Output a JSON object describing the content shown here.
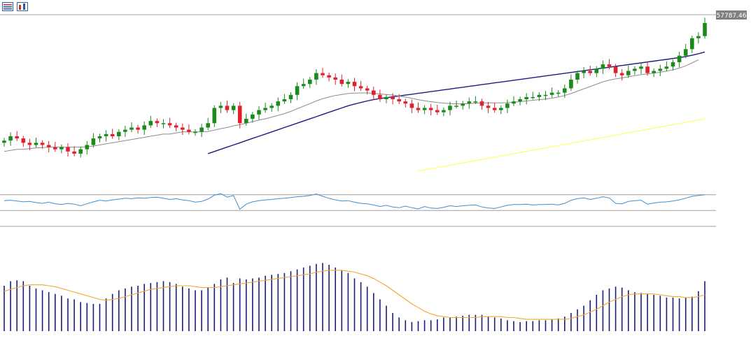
{
  "toolbar": {
    "icons": [
      "candles-view-icon",
      "chart-type-icon"
    ]
  },
  "colors": {
    "up": "#1a8a1a",
    "down": "#e0202f",
    "ma_short": "#8c8c8c",
    "ma_mid": "#1c1c80",
    "ma_long": "#ffff66",
    "rsi": "#3d8fd6",
    "macd_bar": "#1c1c7a",
    "macd_signal": "#f0a830",
    "level_line": "#a0a0a0",
    "label_bg": "#808080",
    "label_text": "#ffffff"
  },
  "price_label": "57787.46",
  "chart_data": [
    {
      "type": "candlestick",
      "panel": "price",
      "current_price": 57787.46,
      "closes": [
        100,
        102,
        101,
        99,
        98,
        99,
        98,
        97,
        96,
        97,
        95,
        94,
        96,
        98,
        101,
        102,
        103,
        102,
        104,
        105,
        106,
        105,
        107,
        109,
        108,
        108,
        107,
        106,
        105,
        104,
        104,
        106,
        108,
        115,
        116,
        114,
        116,
        108,
        110,
        112,
        114,
        115,
        116,
        118,
        119,
        121,
        125,
        126,
        128,
        131,
        130,
        129,
        128,
        126,
        127,
        125,
        124,
        123,
        121,
        119,
        120,
        119,
        118,
        117,
        115,
        114,
        115,
        114,
        113,
        114,
        116,
        116,
        117,
        118,
        118,
        116,
        115,
        114,
        115,
        117,
        118,
        119,
        120,
        120,
        121,
        121,
        122,
        122,
        124,
        128,
        131,
        132,
        131,
        133,
        135,
        134,
        131,
        130,
        132,
        133,
        134,
        131,
        132,
        133,
        134,
        136,
        139,
        142,
        147,
        148,
        154
      ],
      "ma_short": [
        95,
        95.5,
        96,
        96,
        96.3,
        96.6,
        96.8,
        97,
        97,
        97,
        97,
        97,
        97,
        97.2,
        97.5,
        98,
        98.5,
        99,
        99.5,
        100,
        100.5,
        101,
        101.5,
        102,
        102.5,
        103,
        103,
        103.5,
        104,
        104,
        104,
        104,
        104.2,
        104.8,
        105.5,
        106,
        106.8,
        107.3,
        108,
        108.7,
        109.4,
        110,
        110.8,
        111.6,
        112.4,
        113.4,
        114.6,
        115.8,
        117,
        118.2,
        119.2,
        120,
        120.7,
        121.2,
        121.6,
        121.8,
        121.9,
        121.9,
        121.7,
        121.4,
        121.2,
        120.9,
        120.5,
        120,
        119.4,
        118.8,
        118.3,
        117.9,
        117.5,
        117.2,
        117,
        116.9,
        116.9,
        117,
        117.2,
        117.3,
        117.3,
        117.3,
        117.3,
        117.4,
        117.6,
        117.9,
        118.2,
        118.5,
        118.8,
        119.1,
        119.5,
        120,
        120.7,
        121.6,
        122.7,
        123.8,
        124.8,
        125.9,
        127,
        127.8,
        128.3,
        128.8,
        129.3,
        129.8,
        130.3,
        130.6,
        131,
        131.4,
        131.9,
        132.5,
        133.3,
        134.3,
        135.7,
        137.1
      ],
      "ma_mid": [
        null,
        null,
        null,
        null,
        null,
        null,
        null,
        null,
        null,
        null,
        null,
        null,
        null,
        null,
        null,
        null,
        null,
        null,
        null,
        null,
        null,
        null,
        null,
        null,
        null,
        null,
        null,
        null,
        null,
        null,
        null,
        null,
        94,
        95,
        96,
        97,
        98,
        99,
        100,
        101,
        102,
        103,
        104,
        105,
        106,
        107,
        108,
        109,
        110,
        111,
        112,
        113,
        114,
        115,
        116,
        116.8,
        117.5,
        118.2,
        118.8,
        119.3,
        119.7,
        120.1,
        120.5,
        120.9,
        121.3,
        121.7,
        122.1,
        122.5,
        122.9,
        123.3,
        123.7,
        124.1,
        124.5,
        124.9,
        125.3,
        125.7,
        126.1,
        126.5,
        126.9,
        127.3,
        127.7,
        128.1,
        128.5,
        128.9,
        129.3,
        129.7,
        130.1,
        130.5,
        130.9,
        131.3,
        131.7,
        132.1,
        132.5,
        132.9,
        133.3,
        133.7,
        134.1,
        134.5,
        134.9,
        135.3,
        135.7,
        136.1,
        136.5,
        136.9,
        137.3,
        137.7,
        138.1,
        138.6,
        139.2,
        139.9,
        140.7
      ],
      "ma_long_range": [
        86,
        110
      ],
      "ylim": [
        85,
        162
      ]
    },
    {
      "type": "line",
      "panel": "rsi",
      "levels": [
        70,
        30
      ],
      "values": [
        55,
        56,
        54,
        52,
        53,
        50,
        48,
        51,
        47,
        45,
        48,
        46,
        42,
        47,
        52,
        56,
        54,
        57,
        59,
        61,
        60,
        62,
        61,
        63,
        64,
        61,
        58,
        60,
        57,
        55,
        51,
        53,
        59,
        69,
        73,
        64,
        68,
        33,
        46,
        52,
        55,
        57,
        58,
        60,
        61,
        63,
        65,
        66,
        68,
        72,
        66,
        61,
        57,
        54,
        55,
        51,
        48,
        47,
        44,
        40,
        43,
        39,
        37,
        41,
        37,
        34,
        40,
        36,
        35,
        38,
        42,
        40,
        42,
        43,
        44,
        39,
        36,
        35,
        39,
        43,
        45,
        45,
        46,
        44,
        45,
        45,
        46,
        44,
        48,
        56,
        60,
        62,
        58,
        61,
        65,
        62,
        48,
        47,
        53,
        55,
        56,
        46,
        49,
        51,
        52,
        54,
        57,
        61,
        66,
        68,
        70
      ],
      "ylim": [
        0,
        100
      ]
    },
    {
      "type": "bar",
      "panel": "macd",
      "values": [
        50,
        55,
        56,
        55,
        50,
        47,
        45,
        43,
        41,
        39,
        36,
        35,
        32,
        31,
        30,
        30,
        36,
        41,
        45,
        47,
        49,
        50,
        52,
        53,
        54,
        55,
        54,
        52,
        49,
        47,
        45,
        45,
        48,
        52,
        57,
        59,
        53,
        58,
        57,
        58,
        59,
        61,
        62,
        63,
        64,
        66,
        68,
        70,
        72,
        74,
        75,
        73,
        70,
        67,
        64,
        58,
        54,
        49,
        42,
        35,
        28,
        20,
        15,
        12,
        10,
        11,
        12,
        12,
        13,
        15,
        15,
        16,
        17,
        18,
        18,
        18,
        16,
        15,
        14,
        12,
        11,
        10,
        11,
        11,
        12,
        12,
        13,
        14,
        16,
        20,
        24,
        28,
        34,
        40,
        45,
        47,
        49,
        48,
        45,
        43,
        42,
        41,
        40,
        39,
        37,
        37,
        36,
        37,
        38,
        44,
        55
      ],
      "signal": [
        44,
        46,
        48,
        50,
        51,
        51,
        51,
        50,
        49,
        47,
        45,
        43,
        41,
        39,
        37,
        35,
        34,
        35,
        36,
        38,
        40,
        42,
        44,
        46,
        47,
        48,
        49,
        50,
        50,
        50,
        49,
        48,
        48,
        48,
        49,
        50,
        51,
        52,
        53,
        54,
        55,
        56,
        57,
        58,
        59,
        60,
        61,
        62,
        63,
        65,
        66,
        67,
        67,
        67,
        66,
        65,
        63,
        61,
        58,
        54,
        50,
        45,
        40,
        35,
        30,
        26,
        22,
        19,
        17,
        16,
        15,
        15,
        15,
        15,
        15,
        16,
        16,
        16,
        16,
        15,
        15,
        14,
        13,
        13,
        13,
        13,
        13,
        13,
        13,
        14,
        16,
        18,
        21,
        24,
        28,
        32,
        35,
        38,
        40,
        41,
        41,
        41,
        41,
        40,
        39,
        38,
        38,
        37,
        37,
        38,
        40
      ],
      "ylim": [
        0,
        80
      ]
    }
  ]
}
